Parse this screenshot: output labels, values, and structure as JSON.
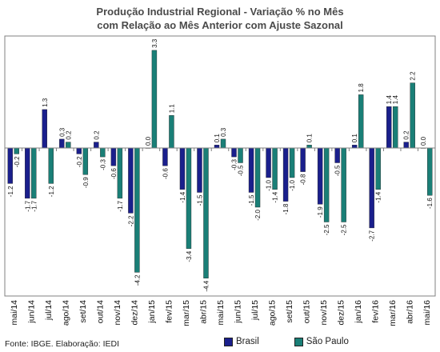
{
  "title_line1": "Produção Industrial Regional - Variação % no Mês",
  "title_line2": "com Relação ao Mês Anterior com Ajuste Sazonal",
  "source": "Fonte: IBGE. Elaboração: IEDI",
  "colors": {
    "brasil": "#1a1f8c",
    "sao_paulo": "#1a7f77",
    "axis": "#808080",
    "grid": "#c0c0c0"
  },
  "chart_data": {
    "type": "bar",
    "title": "Produção Industrial Regional - Variação % no Mês com Relação ao Mês Anterior com Ajuste Sazonal",
    "xlabel": "",
    "ylabel": "",
    "ylim": [
      -5,
      3.8
    ],
    "grid": false,
    "legend_position": "bottom",
    "categories": [
      "mai/14",
      "jun/14",
      "jul/14",
      "ago/14",
      "set/14",
      "out/14",
      "nov/14",
      "dez/14",
      "jan/15",
      "fev/15",
      "mar/15",
      "abr/15",
      "mai/15",
      "jun/15",
      "jul/15",
      "ago/15",
      "set/15",
      "out/15",
      "nov/15",
      "dez/15",
      "jan/16",
      "fev/16",
      "mar/16",
      "abr/16",
      "mai/16"
    ],
    "series": [
      {
        "name": "Brasil",
        "values": [
          -1.2,
          -1.7,
          1.3,
          0.3,
          -0.2,
          0.2,
          -0.6,
          -2.2,
          0.0,
          -0.6,
          -1.4,
          -1.5,
          0.1,
          -0.3,
          -1.5,
          -1.0,
          -1.8,
          -0.8,
          -1.9,
          -0.5,
          0.1,
          -2.7,
          1.4,
          0.2,
          0.0
        ]
      },
      {
        "name": "São Paulo",
        "values": [
          -0.2,
          -1.7,
          -1.2,
          0.2,
          -0.9,
          -0.3,
          -1.7,
          -4.2,
          3.3,
          1.1,
          -3.4,
          -4.4,
          0.3,
          -0.5,
          -2.0,
          -1.4,
          -1.0,
          0.1,
          -2.5,
          -2.5,
          1.8,
          -1.4,
          1.4,
          2.2,
          -1.6
        ]
      }
    ]
  }
}
